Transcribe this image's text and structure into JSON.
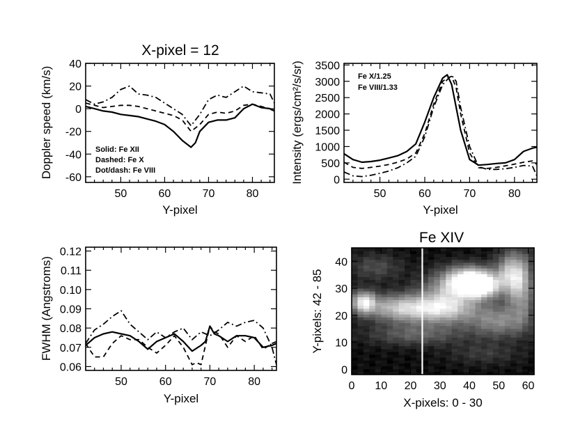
{
  "chart_data": [
    {
      "id": "doppler",
      "type": "line",
      "title": "X-pixel = 12",
      "xlabel": "Y-pixel",
      "ylabel": "Doppler speed (km/s)",
      "xlim": [
        42,
        85
      ],
      "ylim": [
        -65,
        40
      ],
      "xticks": [
        50,
        60,
        70,
        80
      ],
      "yticks": [
        -60,
        -40,
        -20,
        0,
        20,
        40
      ],
      "annotations": [
        "Solid: Fe XII",
        "Dashed: Fe X",
        "Dot/dash: Fe VIII"
      ],
      "series": [
        {
          "name": "Fe XII",
          "style": "solid",
          "x": [
            42,
            44,
            46,
            48,
            50,
            52,
            54,
            56,
            58,
            60,
            62,
            64,
            66,
            67,
            68,
            70,
            72,
            74,
            76,
            78,
            80,
            82,
            84,
            85
          ],
          "y": [
            2,
            0,
            -2,
            -3,
            -5,
            -6,
            -7,
            -9,
            -11,
            -14,
            -20,
            -28,
            -34,
            -30,
            -20,
            -12,
            -10,
            -10,
            -8,
            0,
            4,
            1,
            0,
            -2
          ]
        },
        {
          "name": "Fe X",
          "style": "dashed",
          "x": [
            42,
            44,
            46,
            48,
            50,
            52,
            54,
            56,
            58,
            60,
            62,
            64,
            66,
            68,
            70,
            72,
            74,
            76,
            78,
            80,
            82,
            84,
            85
          ],
          "y": [
            5,
            3,
            1,
            2,
            3,
            3,
            2,
            0,
            -2,
            -4,
            -6,
            -10,
            -20,
            -14,
            -5,
            -3,
            -4,
            -2,
            3,
            4,
            2,
            0,
            -3
          ]
        },
        {
          "name": "Fe VIII",
          "style": "dotdash",
          "x": [
            42,
            44,
            46,
            48,
            50,
            52,
            54,
            56,
            58,
            60,
            62,
            64,
            66,
            68,
            70,
            72,
            74,
            76,
            78,
            80,
            82,
            84,
            85
          ],
          "y": [
            8,
            4,
            6,
            10,
            17,
            20,
            13,
            12,
            10,
            5,
            0,
            -5,
            -15,
            -5,
            8,
            12,
            10,
            15,
            20,
            15,
            14,
            13,
            5
          ]
        }
      ]
    },
    {
      "id": "intensity",
      "type": "line",
      "title": "",
      "xlabel": "Y-pixel",
      "ylabel": "Intensity (ergs/cm²/s/sr)",
      "xlim": [
        42,
        85
      ],
      "ylim": [
        -100,
        3550
      ],
      "xticks": [
        50,
        60,
        70,
        80
      ],
      "yticks": [
        0,
        500,
        1000,
        1500,
        2000,
        2500,
        3000,
        3500
      ],
      "annotations": [
        "Fe X/1.25",
        "Fe VIII/1.33"
      ],
      "series": [
        {
          "name": "Fe XII",
          "style": "solid",
          "x": [
            42,
            44,
            46,
            48,
            50,
            52,
            54,
            56,
            58,
            60,
            62,
            64,
            65,
            66,
            68,
            70,
            72,
            74,
            76,
            78,
            80,
            82,
            84,
            85
          ],
          "y": [
            780,
            600,
            520,
            540,
            580,
            650,
            720,
            850,
            1080,
            1750,
            2500,
            3100,
            3200,
            2900,
            1500,
            600,
            430,
            450,
            480,
            500,
            600,
            850,
            950,
            980
          ]
        },
        {
          "name": "Fe X/1.25",
          "style": "dashed",
          "x": [
            42,
            44,
            46,
            48,
            50,
            52,
            54,
            56,
            58,
            60,
            62,
            64,
            65,
            66,
            67,
            68,
            70,
            72,
            74,
            76,
            78,
            80,
            82,
            84,
            85
          ],
          "y": [
            520,
            360,
            330,
            360,
            400,
            450,
            520,
            620,
            800,
            1400,
            2300,
            3000,
            3100,
            3150,
            2800,
            2000,
            800,
            350,
            330,
            360,
            410,
            460,
            520,
            560,
            450
          ]
        },
        {
          "name": "Fe VIII/1.33",
          "style": "dotdash",
          "x": [
            42,
            44,
            46,
            48,
            50,
            52,
            54,
            56,
            58,
            60,
            62,
            64,
            65,
            66,
            67,
            68,
            70,
            72,
            74,
            76,
            78,
            80,
            82,
            84,
            85
          ],
          "y": [
            220,
            100,
            80,
            120,
            180,
            250,
            350,
            500,
            700,
            1300,
            2200,
            2900,
            3050,
            3180,
            3000,
            2200,
            1000,
            380,
            300,
            300,
            320,
            360,
            420,
            400,
            100
          ]
        }
      ]
    },
    {
      "id": "fwhm",
      "type": "line",
      "title": "",
      "xlabel": "Y-pixel",
      "ylabel": "FWHM (Angstroms)",
      "xlim": [
        42,
        85
      ],
      "ylim": [
        0.058,
        0.122
      ],
      "xticks": [
        50,
        60,
        70,
        80
      ],
      "yticks": [
        0.06,
        0.07,
        0.08,
        0.09,
        0.1,
        0.11,
        0.12
      ],
      "series": [
        {
          "name": "Fe XII",
          "style": "solid",
          "x": [
            42,
            44,
            46,
            48,
            50,
            52,
            54,
            56,
            58,
            60,
            62,
            64,
            66,
            68,
            69,
            70,
            71,
            72,
            74,
            76,
            78,
            80,
            82,
            84,
            85
          ],
          "y": [
            0.071,
            0.075,
            0.077,
            0.078,
            0.077,
            0.076,
            0.073,
            0.069,
            0.073,
            0.075,
            0.077,
            0.073,
            0.068,
            0.071,
            0.073,
            0.081,
            0.077,
            0.076,
            0.073,
            0.076,
            0.076,
            0.075,
            0.07,
            0.071,
            0.072
          ]
        },
        {
          "name": "Fe X",
          "style": "dashed",
          "x": [
            42,
            44,
            46,
            48,
            50,
            52,
            54,
            56,
            58,
            60,
            62,
            64,
            66,
            67,
            68,
            70,
            71,
            72,
            74,
            76,
            78,
            80,
            82,
            84,
            85
          ],
          "y": [
            0.072,
            0.065,
            0.065,
            0.072,
            0.076,
            0.074,
            0.074,
            0.07,
            0.067,
            0.071,
            0.076,
            0.07,
            0.061,
            0.062,
            0.061,
            0.081,
            0.078,
            0.077,
            0.07,
            0.076,
            0.073,
            0.076,
            0.069,
            0.072,
            0.073
          ]
        },
        {
          "name": "Fe VIII",
          "style": "dotdash",
          "x": [
            42,
            44,
            46,
            48,
            50,
            52,
            54,
            56,
            58,
            60,
            62,
            64,
            66,
            68,
            70,
            72,
            74,
            76,
            78,
            80,
            82,
            84,
            85
          ],
          "y": [
            0.072,
            0.079,
            0.082,
            0.086,
            0.089,
            0.082,
            0.078,
            0.074,
            0.078,
            0.075,
            0.078,
            0.08,
            0.074,
            0.078,
            0.076,
            0.079,
            0.083,
            0.081,
            0.083,
            0.084,
            0.08,
            0.07,
            0.061
          ]
        }
      ]
    },
    {
      "id": "image",
      "type": "heatmap",
      "title": "Fe XIV",
      "xlabel": "X-pixels: 0 - 30",
      "ylabel": "Y-pixels: 42 - 85",
      "xlim": [
        0,
        62
      ],
      "ylim": [
        -2,
        45
      ],
      "xticks": [
        0,
        10,
        20,
        30,
        40,
        50,
        60
      ],
      "yticks": [
        0,
        10,
        20,
        30,
        40
      ],
      "marker_x": 24,
      "colormap": "grayscale",
      "blobs": [
        {
          "cx": 40,
          "cy": 33,
          "rx": 8,
          "ry": 5,
          "v": 1.0
        },
        {
          "cx": 44,
          "cy": 31,
          "rx": 5,
          "ry": 4,
          "v": 0.95
        },
        {
          "cx": 54,
          "cy": 35,
          "rx": 5,
          "ry": 8,
          "v": 0.7
        },
        {
          "cx": 33,
          "cy": 27,
          "rx": 10,
          "ry": 8,
          "v": 0.55
        },
        {
          "cx": 4,
          "cy": 25,
          "rx": 4,
          "ry": 4,
          "v": 0.8
        },
        {
          "cx": 15,
          "cy": 23,
          "rx": 11,
          "ry": 5,
          "v": 0.55
        },
        {
          "cx": 28,
          "cy": 22,
          "rx": 13,
          "ry": 5,
          "v": 0.5
        },
        {
          "cx": 50,
          "cy": 18,
          "rx": 10,
          "ry": 6,
          "v": 0.45
        },
        {
          "cx": 58,
          "cy": 30,
          "rx": 4,
          "ry": 12,
          "v": 0.45
        },
        {
          "cx": 22,
          "cy": 13,
          "rx": 16,
          "ry": 4,
          "v": 0.3
        },
        {
          "cx": 8,
          "cy": 38,
          "rx": 9,
          "ry": 5,
          "v": 0.22
        },
        {
          "cx": 45,
          "cy": 6,
          "rx": 12,
          "ry": 4,
          "v": 0.15
        }
      ]
    }
  ]
}
